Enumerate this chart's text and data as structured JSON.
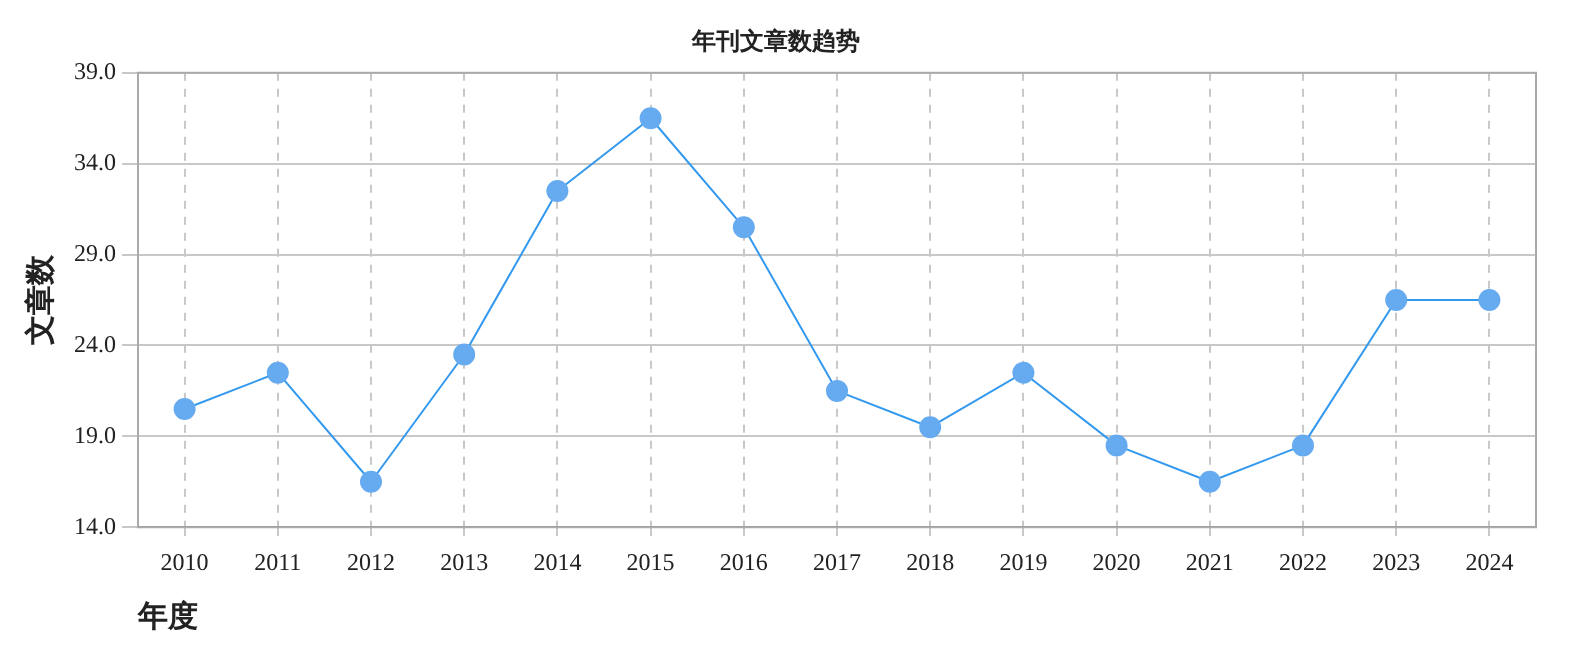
{
  "chart_data": {
    "type": "line",
    "title": "年刊文章数趋势",
    "xlabel": "年度",
    "ylabel": "文章数",
    "categories": [
      "2010",
      "2011",
      "2012",
      "2013",
      "2014",
      "2015",
      "2016",
      "2017",
      "2018",
      "2019",
      "2020",
      "2021",
      "2022",
      "2023",
      "2024"
    ],
    "series": [
      {
        "color": "#3399ee",
        "values": [
          20.5,
          22.5,
          16.5,
          23.5,
          32.5,
          36.5,
          30.5,
          21.5,
          19.5,
          22.5,
          18.5,
          16.5,
          18.5,
          26.5,
          26.5
        ]
      }
    ],
    "ylim": [
      14,
      39
    ],
    "yticks": [
      {
        "value": 14,
        "label": "14.0"
      },
      {
        "value": 19,
        "label": "19.0"
      },
      {
        "value": 24,
        "label": "24.0"
      },
      {
        "value": 29,
        "label": "29.0"
      },
      {
        "value": 34,
        "label": "34.0"
      },
      {
        "value": 39,
        "label": "39.0"
      }
    ],
    "grid": true,
    "marker": "circle",
    "line_style": "solid",
    "legend": false
  }
}
